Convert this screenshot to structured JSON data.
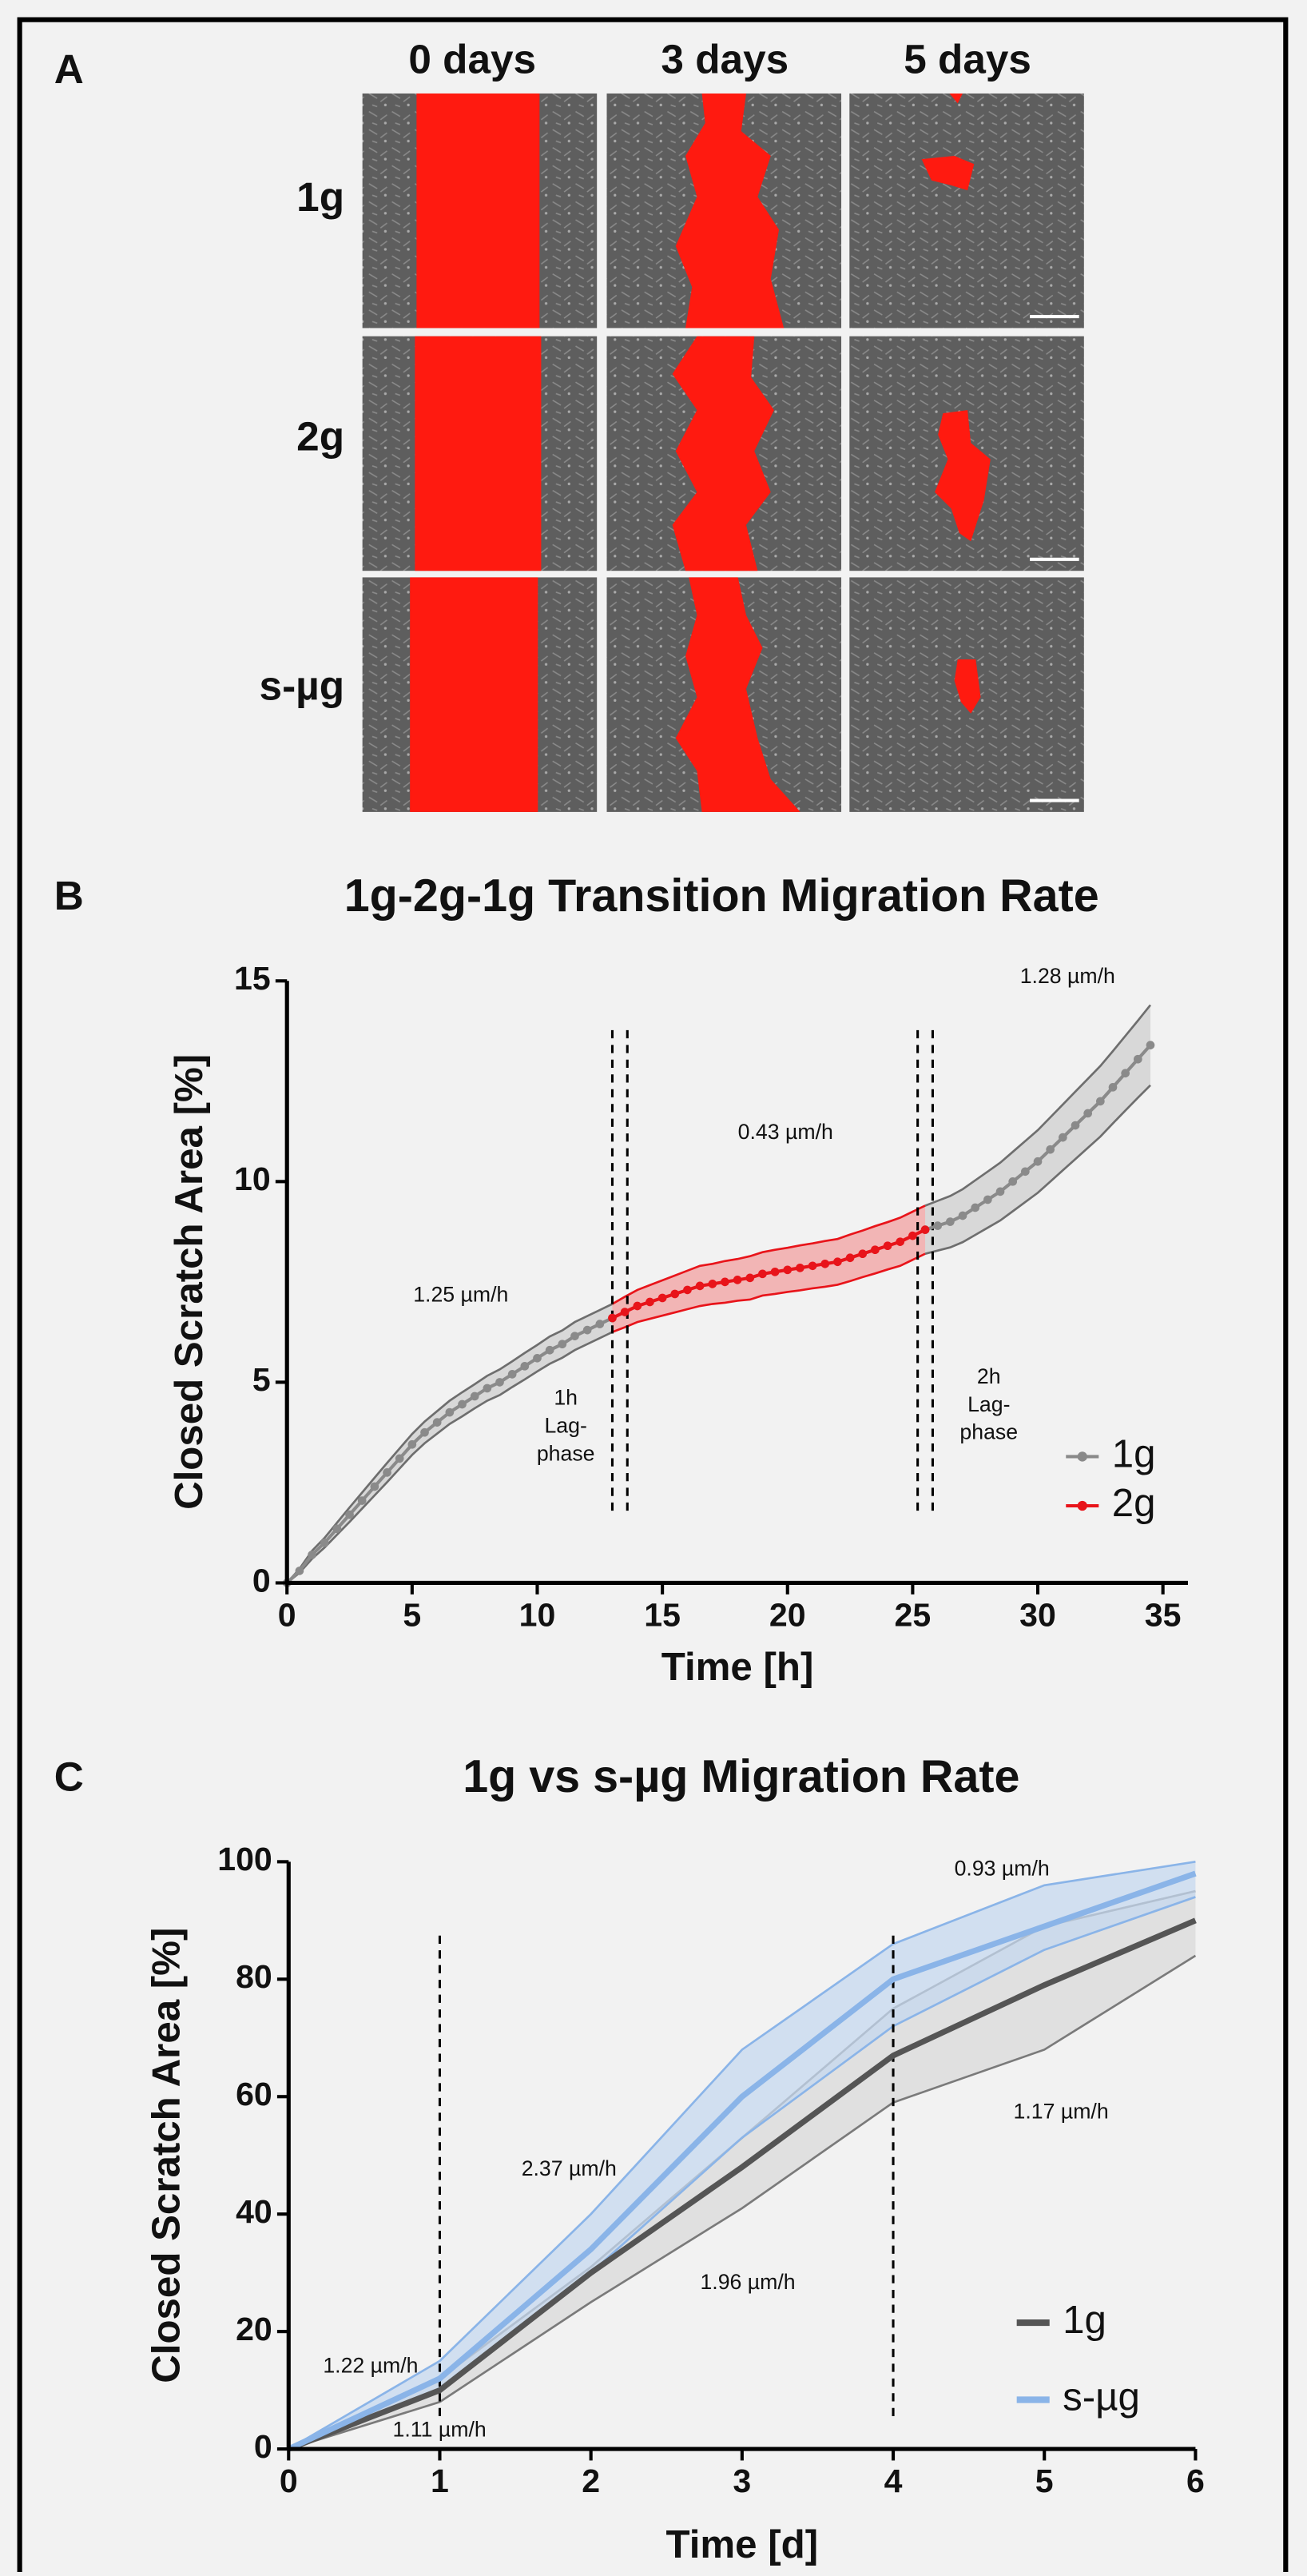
{
  "panel_a": {
    "label": "A",
    "columns": [
      "0 days",
      "3 days",
      "5 days"
    ],
    "rows": [
      "1g",
      "2g",
      "s-µg"
    ]
  },
  "chart_data": [
    {
      "type": "line",
      "panel": "B",
      "title": "1g-2g-1g Transition Migration Rate",
      "x_label": "Time [h]",
      "y_label": "Closed Scratch Area [%]",
      "xlim": [
        0,
        36
      ],
      "ylim": [
        0,
        15
      ],
      "xticks": [
        0,
        5,
        10,
        15,
        20,
        25,
        30,
        35
      ],
      "yticks": [
        0,
        5,
        10,
        15
      ],
      "markers": true,
      "vlines": [
        13,
        13.6,
        25.2,
        25.8
      ],
      "x": [
        0,
        0.5,
        1,
        1.5,
        2,
        2.5,
        3,
        3.5,
        4,
        4.5,
        5,
        5.5,
        6,
        6.5,
        7,
        7.5,
        8,
        8.5,
        9,
        9.5,
        10,
        10.5,
        11,
        11.5,
        12,
        12.5,
        13,
        13.5,
        14,
        14.5,
        15,
        15.5,
        16,
        16.5,
        17,
        17.5,
        18,
        18.5,
        19,
        19.5,
        20,
        20.5,
        21,
        21.5,
        22,
        22.5,
        23,
        23.5,
        24,
        24.5,
        25,
        25.5,
        26,
        26.5,
        27,
        27.5,
        28,
        28.5,
        29,
        29.5,
        30,
        30.5,
        31,
        31.5,
        32,
        32.5,
        33,
        33.5,
        34,
        34.5
      ],
      "series": [
        {
          "name": "1g",
          "color": "#8a8a8a",
          "band_color": "#cfcfcf",
          "edge_color": "#6e6e6e",
          "values": [
            0,
            0.3,
            0.7,
            1.0,
            1.35,
            1.7,
            2.05,
            2.4,
            2.75,
            3.1,
            3.45,
            3.75,
            4.0,
            4.25,
            4.45,
            4.65,
            4.85,
            5.0,
            5.2,
            5.4,
            5.6,
            5.8,
            5.95,
            6.15,
            6.3,
            6.45,
            6.6,
            null,
            null,
            null,
            null,
            null,
            null,
            null,
            null,
            null,
            null,
            null,
            null,
            null,
            null,
            null,
            null,
            null,
            null,
            null,
            null,
            null,
            null,
            null,
            null,
            8.8,
            8.9,
            9.0,
            9.15,
            9.35,
            9.55,
            9.75,
            10.0,
            10.25,
            10.5,
            10.8,
            11.1,
            11.4,
            11.7,
            12.0,
            12.35,
            12.7,
            13.05,
            13.4
          ],
          "errors": [
            0,
            0.05,
            0.1,
            0.12,
            0.15,
            0.18,
            0.2,
            0.22,
            0.24,
            0.25,
            0.26,
            0.27,
            0.28,
            0.29,
            0.3,
            0.3,
            0.31,
            0.32,
            0.32,
            0.33,
            0.33,
            0.34,
            0.34,
            0.35,
            0.35,
            0.35,
            0.35,
            null,
            null,
            null,
            null,
            null,
            null,
            null,
            null,
            null,
            null,
            null,
            null,
            null,
            null,
            null,
            null,
            null,
            null,
            null,
            null,
            null,
            null,
            null,
            null,
            0.6,
            0.62,
            0.64,
            0.66,
            0.68,
            0.7,
            0.72,
            0.74,
            0.76,
            0.78,
            0.8,
            0.82,
            0.84,
            0.86,
            0.88,
            0.9,
            0.93,
            0.96,
            1.0
          ]
        },
        {
          "name": "2g",
          "color": "#e8141a",
          "band_color": "#f2a0a0",
          "edge_color": "#e8141a",
          "values": [
            null,
            null,
            null,
            null,
            null,
            null,
            null,
            null,
            null,
            null,
            null,
            null,
            null,
            null,
            null,
            null,
            null,
            null,
            null,
            null,
            null,
            null,
            null,
            null,
            null,
            null,
            6.6,
            6.75,
            6.9,
            7.0,
            7.1,
            7.2,
            7.3,
            7.4,
            7.45,
            7.5,
            7.55,
            7.6,
            7.7,
            7.75,
            7.8,
            7.85,
            7.9,
            7.95,
            8.0,
            8.1,
            8.2,
            8.3,
            8.4,
            8.5,
            8.65,
            8.8,
            null,
            null,
            null,
            null,
            null,
            null,
            null,
            null,
            null,
            null,
            null,
            null,
            null,
            null,
            null,
            null,
            null,
            null
          ],
          "errors": [
            null,
            null,
            null,
            null,
            null,
            null,
            null,
            null,
            null,
            null,
            null,
            null,
            null,
            null,
            null,
            null,
            null,
            null,
            null,
            null,
            null,
            null,
            null,
            null,
            null,
            null,
            0.35,
            0.38,
            0.4,
            0.42,
            0.44,
            0.46,
            0.48,
            0.5,
            0.5,
            0.52,
            0.52,
            0.54,
            0.54,
            0.55,
            0.55,
            0.56,
            0.56,
            0.57,
            0.57,
            0.58,
            0.58,
            0.59,
            0.59,
            0.6,
            0.6,
            0.6,
            null,
            null,
            null,
            null,
            null,
            null,
            null,
            null,
            null,
            null,
            null,
            null,
            null,
            null,
            null,
            null,
            null,
            null
          ]
        }
      ],
      "annotations": [
        [
          "1.25 µm/h"
        ],
        [
          "1h",
          "Lag-",
          "phase"
        ],
        [
          "0.43 µm/h"
        ],
        [
          "1.28 µm/h"
        ],
        [
          "2h",
          "Lag-",
          "phase"
        ]
      ]
    },
    {
      "type": "line",
      "panel": "C",
      "title": "1g vs s-µg Migration Rate",
      "x_label": "Time [d]",
      "y_label": "Closed Scratch Area [%]",
      "xlim": [
        0,
        6
      ],
      "ylim": [
        0,
        100
      ],
      "xticks": [
        0,
        1,
        2,
        3,
        4,
        5,
        6
      ],
      "yticks": [
        0,
        20,
        40,
        60,
        80,
        100
      ],
      "markers": false,
      "vlines": [
        1,
        4
      ],
      "x": [
        0,
        1,
        2,
        3,
        4,
        5,
        6
      ],
      "series": [
        {
          "name": "1g",
          "color": "#555555",
          "band_color": "#dadada",
          "edge_color": "#7a7a7a",
          "values": [
            0,
            10,
            30,
            48,
            67,
            79,
            90
          ],
          "lower": [
            0,
            8,
            25,
            41,
            59,
            68,
            84
          ],
          "upper": [
            0,
            12,
            31,
            53,
            75,
            89,
            95
          ]
        },
        {
          "name": "s-µg",
          "color": "#8ab4e8",
          "band_color": "#c6d8ef",
          "edge_color": "#8ab4e8",
          "values": [
            0,
            12,
            34,
            60,
            80,
            89,
            98
          ],
          "lower": [
            0,
            10,
            30,
            53,
            72,
            85,
            94
          ],
          "upper": [
            0,
            15,
            40,
            68,
            86,
            96,
            100
          ]
        }
      ],
      "annotations": [
        [
          "1.22 µm/h"
        ],
        [
          "1.11 µm/h"
        ],
        [
          "2.37 µm/h"
        ],
        [
          "1.96 µm/h"
        ],
        [
          "0.93 µm/h"
        ],
        [
          "1.17  µm/h"
        ]
      ]
    }
  ]
}
